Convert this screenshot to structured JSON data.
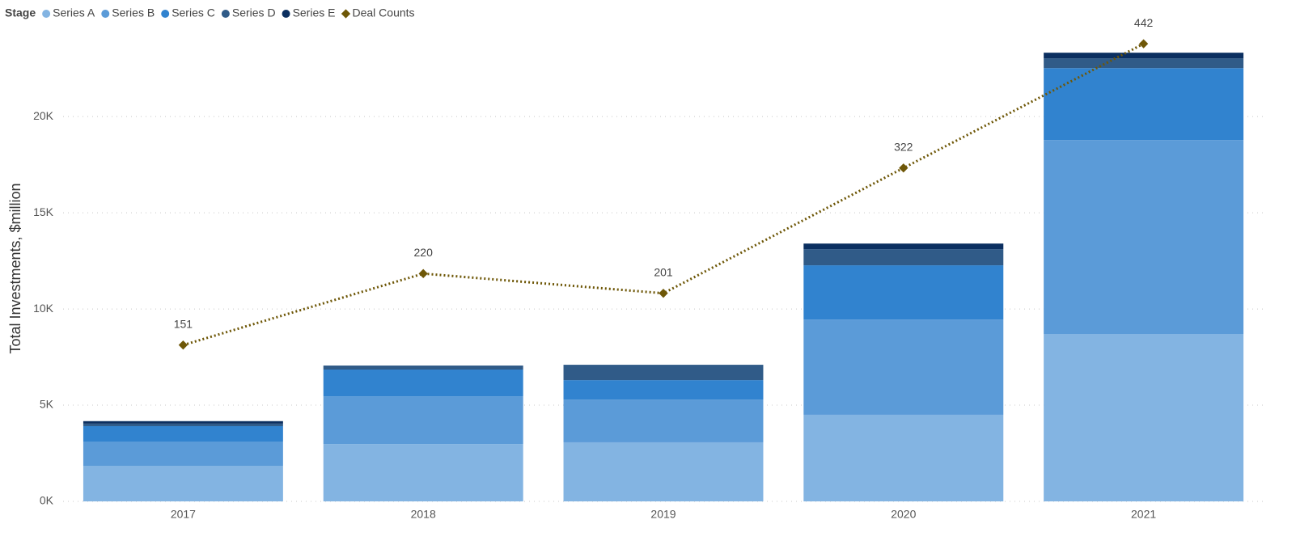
{
  "chart_data": {
    "type": "bar",
    "stacked": true,
    "legend_title": "Stage",
    "legend_position": "top-left",
    "y_label": "Total Investments, $million",
    "categories": [
      "2017",
      "2018",
      "2019",
      "2020",
      "2021"
    ],
    "series": [
      {
        "name": "Series A",
        "color": "#83b4e2",
        "values": [
          1850,
          2980,
          3070,
          4500,
          8700
        ]
      },
      {
        "name": "Series B",
        "color": "#5b9bd8",
        "values": [
          1260,
          2480,
          2220,
          4950,
          10080
        ]
      },
      {
        "name": "Series C",
        "color": "#3183cf",
        "values": [
          800,
          1390,
          1010,
          2820,
          3740
        ]
      },
      {
        "name": "Series D",
        "color": "#305b88",
        "values": [
          130,
          210,
          800,
          840,
          510
        ]
      },
      {
        "name": "Series E",
        "color": "#0b2f60",
        "values": [
          130,
          0,
          0,
          290,
          290
        ]
      },
      {
        "name": "Deal Counts",
        "color": "#6e5707",
        "type": "line",
        "axis": "y2",
        "values": [
          151,
          220,
          201,
          322,
          442
        ]
      }
    ],
    "ylim": [
      0,
      24000
    ],
    "yticks": [
      {
        "value": 0,
        "label": "0K"
      },
      {
        "value": 5000,
        "label": "5K"
      },
      {
        "value": 10000,
        "label": "10K"
      },
      {
        "value": 15000,
        "label": "15K"
      },
      {
        "value": 20000,
        "label": "20K"
      }
    ],
    "y2lim": [
      0,
      446
    ],
    "grid": true
  }
}
